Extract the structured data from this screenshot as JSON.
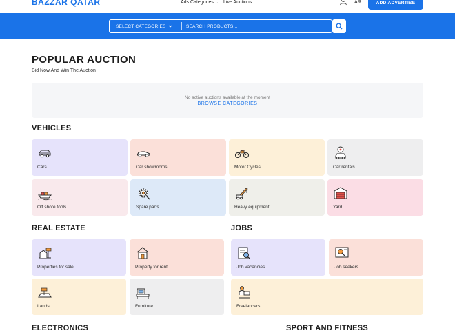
{
  "header": {
    "logo": "BAZZAR QATAR",
    "nav_ads": "Ads Categories",
    "nav_live": "Live Auctions",
    "lang": "AR",
    "add_button": "ADD ADVERTISE"
  },
  "search": {
    "category_label": "SELECT CATEGORIES",
    "placeholder": "SEARCH PRODUCTS..."
  },
  "auction": {
    "title": "POPULAR AUCTION",
    "subtitle": "Bid Now And Win The Auction",
    "empty_message": "No active auctions available at the moment",
    "browse_link": "BROWSE CATEGORIES"
  },
  "vehicles": {
    "title": "VEHICLES",
    "items": [
      {
        "label": "Cars",
        "icon": "car-icon",
        "color": "#e6e3fb"
      },
      {
        "label": "Car showrooms",
        "icon": "car-showroom-icon",
        "color": "#fbe0d9"
      },
      {
        "label": "Motor Cycles",
        "icon": "motorcycle-icon",
        "color": "#fdf0d8"
      },
      {
        "label": "Car rentals",
        "icon": "car-rental-icon",
        "color": "#eeeeef"
      },
      {
        "label": "Off shore tools",
        "icon": "boat-icon",
        "color": "#f9e9ec"
      },
      {
        "label": "Spare parts",
        "icon": "gear-icon",
        "color": "#dde9f8"
      },
      {
        "label": "Heavy equipment",
        "icon": "crane-icon",
        "color": "#efefea"
      },
      {
        "label": "Yard",
        "icon": "yard-icon",
        "color": "#fbdde5"
      }
    ]
  },
  "real_estate": {
    "title": "REAL ESTATE",
    "items": [
      {
        "label": "Properties for sale",
        "icon": "property-sale-icon",
        "color": "#e6e3fb"
      },
      {
        "label": "Property for rent",
        "icon": "house-rent-icon",
        "color": "#fbe0d9"
      },
      {
        "label": "Lands",
        "icon": "land-icon",
        "color": "#fdf0d8"
      },
      {
        "label": "Furniture",
        "icon": "furniture-icon",
        "color": "#eeeeef"
      }
    ]
  },
  "jobs": {
    "title": "JOBS",
    "items": [
      {
        "label": "Job vacancies",
        "icon": "job-vacancy-icon",
        "color": "#e6e3fb"
      },
      {
        "label": "Job seekers",
        "icon": "job-seeker-icon",
        "color": "#fbe0d9"
      },
      {
        "label": "Freelancers",
        "icon": "freelancer-icon",
        "color": "#fdf0d8"
      }
    ]
  },
  "electronics": {
    "title": "ELECTRONICS"
  },
  "sport": {
    "title": "SPORT AND FITNESS"
  },
  "colors": {
    "primary": "#1a73e8",
    "icon_stroke": "#2b2b2b"
  }
}
